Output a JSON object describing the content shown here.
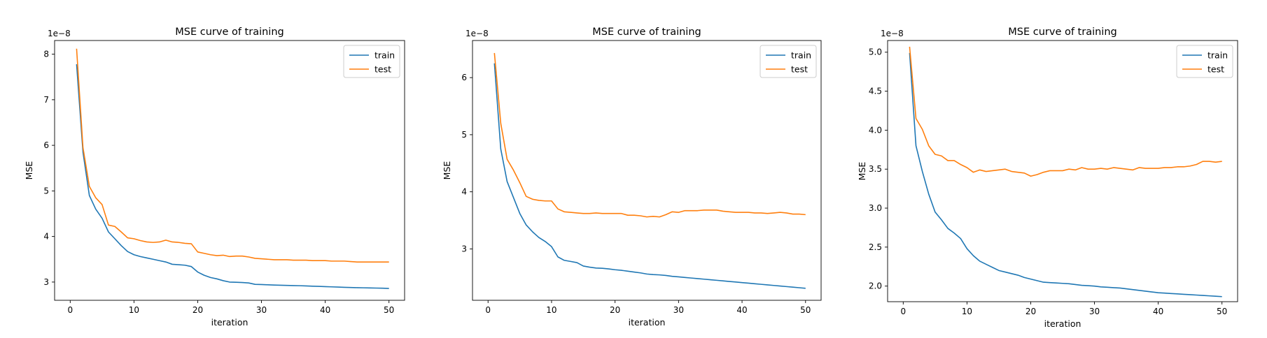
{
  "chart_data": [
    {
      "type": "line",
      "title": "MSE curve of training",
      "xlabel": "iteration",
      "ylabel": "MSE",
      "offset_label": "1e−8",
      "xlim": [
        -2.45,
        52.45
      ],
      "ylim": [
        2.6,
        8.3
      ],
      "xticks": [
        0,
        10,
        20,
        30,
        40,
        50
      ],
      "yticks": [
        3,
        4,
        5,
        6,
        7,
        8
      ],
      "ytick_labels": [
        "3",
        "4",
        "5",
        "6",
        "7",
        "8"
      ],
      "legend_position": "top-right",
      "x": [
        1,
        2,
        3,
        4,
        5,
        6,
        7,
        8,
        9,
        10,
        11,
        12,
        13,
        14,
        15,
        16,
        17,
        18,
        19,
        20,
        21,
        22,
        23,
        24,
        25,
        26,
        27,
        28,
        29,
        30,
        31,
        32,
        33,
        34,
        35,
        36,
        37,
        38,
        39,
        40,
        41,
        42,
        43,
        44,
        45,
        46,
        47,
        48,
        49,
        50
      ],
      "series": [
        {
          "name": "train",
          "color": "#1f77b4",
          "values": [
            7.78,
            5.85,
            4.9,
            4.6,
            4.4,
            4.1,
            3.95,
            3.8,
            3.67,
            3.6,
            3.56,
            3.53,
            3.5,
            3.47,
            3.44,
            3.39,
            3.38,
            3.37,
            3.34,
            3.22,
            3.15,
            3.1,
            3.07,
            3.03,
            3.0,
            2.995,
            2.99,
            2.98,
            2.95,
            2.945,
            2.94,
            2.935,
            2.93,
            2.927,
            2.923,
            2.92,
            2.915,
            2.91,
            2.905,
            2.9,
            2.895,
            2.89,
            2.885,
            2.88,
            2.877,
            2.874,
            2.871,
            2.868,
            2.865,
            2.86
          ]
        },
        {
          "name": "test",
          "color": "#ff7f0e",
          "values": [
            8.12,
            5.95,
            5.1,
            4.85,
            4.7,
            4.25,
            4.22,
            4.1,
            3.97,
            3.95,
            3.91,
            3.88,
            3.87,
            3.88,
            3.92,
            3.88,
            3.87,
            3.85,
            3.84,
            3.66,
            3.63,
            3.6,
            3.58,
            3.59,
            3.56,
            3.57,
            3.57,
            3.55,
            3.52,
            3.51,
            3.5,
            3.49,
            3.49,
            3.49,
            3.48,
            3.48,
            3.48,
            3.47,
            3.47,
            3.47,
            3.46,
            3.46,
            3.46,
            3.45,
            3.44,
            3.44,
            3.44,
            3.44,
            3.44,
            3.44
          ]
        }
      ]
    },
    {
      "type": "line",
      "title": "MSE curve of training",
      "xlabel": "iteration",
      "ylabel": "MSE",
      "offset_label": "1e−8",
      "xlim": [
        -2.45,
        52.45
      ],
      "ylim": [
        2.1,
        6.65
      ],
      "xticks": [
        0,
        10,
        20,
        30,
        40,
        50
      ],
      "yticks": [
        3,
        4,
        5,
        6
      ],
      "ytick_labels": [
        "3",
        "4",
        "5",
        "6"
      ],
      "legend_position": "top-right",
      "x": [
        1,
        2,
        3,
        4,
        5,
        6,
        7,
        8,
        9,
        10,
        11,
        12,
        13,
        14,
        15,
        16,
        17,
        18,
        19,
        20,
        21,
        22,
        23,
        24,
        25,
        26,
        27,
        28,
        29,
        30,
        31,
        32,
        33,
        34,
        35,
        36,
        37,
        38,
        39,
        40,
        41,
        42,
        43,
        44,
        45,
        46,
        47,
        48,
        49,
        50
      ],
      "series": [
        {
          "name": "train",
          "color": "#1f77b4",
          "values": [
            6.25,
            4.75,
            4.18,
            3.9,
            3.62,
            3.42,
            3.3,
            3.2,
            3.13,
            3.04,
            2.86,
            2.8,
            2.78,
            2.76,
            2.7,
            2.68,
            2.665,
            2.66,
            2.65,
            2.635,
            2.625,
            2.61,
            2.595,
            2.58,
            2.56,
            2.55,
            2.545,
            2.535,
            2.52,
            2.51,
            2.5,
            2.49,
            2.48,
            2.47,
            2.46,
            2.45,
            2.44,
            2.43,
            2.42,
            2.41,
            2.4,
            2.39,
            2.38,
            2.37,
            2.36,
            2.35,
            2.34,
            2.33,
            2.32,
            2.31
          ]
        },
        {
          "name": "test",
          "color": "#ff7f0e",
          "values": [
            6.43,
            5.2,
            4.57,
            4.38,
            4.16,
            3.92,
            3.87,
            3.85,
            3.84,
            3.84,
            3.7,
            3.65,
            3.64,
            3.63,
            3.62,
            3.62,
            3.63,
            3.62,
            3.62,
            3.62,
            3.62,
            3.59,
            3.59,
            3.58,
            3.56,
            3.57,
            3.56,
            3.6,
            3.65,
            3.64,
            3.67,
            3.67,
            3.67,
            3.68,
            3.68,
            3.68,
            3.66,
            3.65,
            3.64,
            3.64,
            3.64,
            3.63,
            3.63,
            3.62,
            3.63,
            3.64,
            3.63,
            3.61,
            3.61,
            3.6
          ]
        }
      ]
    },
    {
      "type": "line",
      "title": "MSE curve of training",
      "xlabel": "iteration",
      "ylabel": "MSE",
      "offset_label": "1e−8",
      "xlim": [
        -2.45,
        52.45
      ],
      "ylim": [
        1.8,
        5.15
      ],
      "xticks": [
        0,
        10,
        20,
        30,
        40,
        50
      ],
      "yticks": [
        2.0,
        2.5,
        3.0,
        3.5,
        4.0,
        4.5,
        5.0
      ],
      "ytick_labels": [
        "2.0",
        "2.5",
        "3.0",
        "3.5",
        "4.0",
        "4.5",
        "5.0"
      ],
      "legend_position": "top-right",
      "x": [
        1,
        2,
        3,
        4,
        5,
        6,
        7,
        8,
        9,
        10,
        11,
        12,
        13,
        14,
        15,
        16,
        17,
        18,
        19,
        20,
        21,
        22,
        23,
        24,
        25,
        26,
        27,
        28,
        29,
        30,
        31,
        32,
        33,
        34,
        35,
        36,
        37,
        38,
        39,
        40,
        41,
        42,
        43,
        44,
        45,
        46,
        47,
        48,
        49,
        50
      ],
      "series": [
        {
          "name": "train",
          "color": "#1f77b4",
          "values": [
            4.99,
            3.8,
            3.47,
            3.18,
            2.95,
            2.85,
            2.74,
            2.68,
            2.61,
            2.48,
            2.39,
            2.32,
            2.28,
            2.24,
            2.2,
            2.18,
            2.16,
            2.14,
            2.11,
            2.09,
            2.07,
            2.05,
            2.045,
            2.04,
            2.035,
            2.03,
            2.02,
            2.01,
            2.005,
            2.0,
            1.99,
            1.985,
            1.98,
            1.975,
            1.965,
            1.955,
            1.945,
            1.935,
            1.925,
            1.915,
            1.91,
            1.905,
            1.9,
            1.895,
            1.89,
            1.885,
            1.88,
            1.875,
            1.87,
            1.865
          ]
        },
        {
          "name": "test",
          "color": "#ff7f0e",
          "values": [
            5.07,
            4.15,
            4.01,
            3.8,
            3.69,
            3.67,
            3.61,
            3.61,
            3.56,
            3.52,
            3.46,
            3.49,
            3.47,
            3.48,
            3.49,
            3.5,
            3.47,
            3.46,
            3.45,
            3.41,
            3.43,
            3.46,
            3.48,
            3.48,
            3.48,
            3.5,
            3.49,
            3.52,
            3.5,
            3.5,
            3.51,
            3.5,
            3.52,
            3.51,
            3.5,
            3.49,
            3.52,
            3.51,
            3.51,
            3.51,
            3.52,
            3.52,
            3.53,
            3.53,
            3.54,
            3.56,
            3.6,
            3.6,
            3.59,
            3.6
          ]
        }
      ]
    }
  ]
}
